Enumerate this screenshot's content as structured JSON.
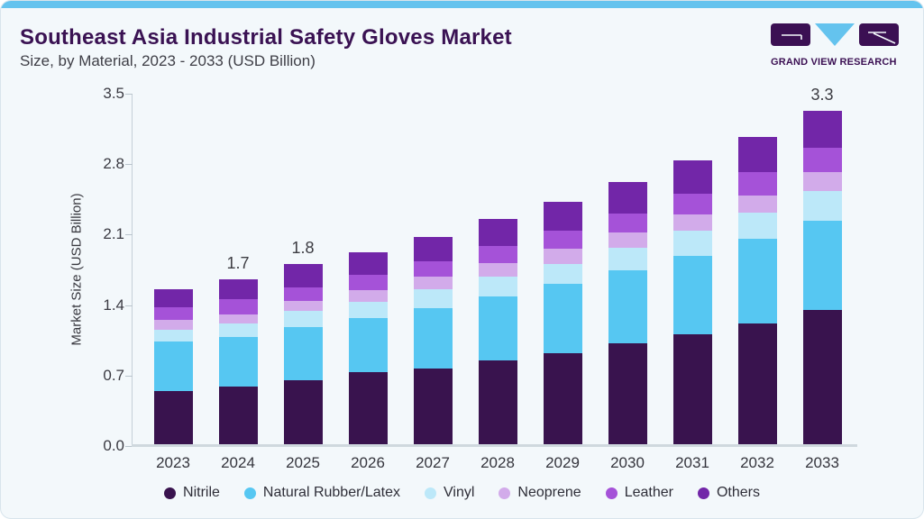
{
  "header": {
    "title": "Southeast Asia Industrial Safety Gloves Market",
    "subtitle": "Size, by Material, 2023 - 2033 (USD Billion)"
  },
  "logo": {
    "text": "GRAND VIEW RESEARCH",
    "block_color": "#3B1053",
    "triangle_color": "#64C3EE"
  },
  "colors": {
    "card_background": "#F3F8FB",
    "top_strip": "#64C3EE",
    "title_text": "#3A1253",
    "axis_line": "#C5CFD8",
    "axis_text": "#3A3A42"
  },
  "chart_data": {
    "type": "bar",
    "stacked": true,
    "title": "Southeast Asia Industrial Safety Gloves Market Size, by Material, 2023 - 2033 (USD Billion)",
    "xlabel": "",
    "ylabel": "Market Size (USD Billion)",
    "ylim": [
      0,
      3.5
    ],
    "ytick_labels": [
      "0.0",
      "0.7",
      "1.4",
      "2.1",
      "2.8",
      "3.5"
    ],
    "grid": false,
    "legend_position": "bottom",
    "categories": [
      "2023",
      "2024",
      "2025",
      "2026",
      "2027",
      "2028",
      "2029",
      "2030",
      "2031",
      "2032",
      "2033"
    ],
    "series": [
      {
        "name": "Nitrile",
        "color": "#39134E",
        "values": [
          0.55,
          0.59,
          0.65,
          0.73,
          0.77,
          0.85,
          0.92,
          1.02,
          1.11,
          1.22,
          1.35
        ]
      },
      {
        "name": "Natural Rubber/Latex",
        "color": "#56C7F2",
        "values": [
          0.49,
          0.49,
          0.53,
          0.54,
          0.6,
          0.64,
          0.69,
          0.73,
          0.78,
          0.84,
          0.89
        ]
      },
      {
        "name": "Vinyl",
        "color": "#BCE8F9",
        "values": [
          0.12,
          0.14,
          0.16,
          0.16,
          0.19,
          0.19,
          0.2,
          0.22,
          0.25,
          0.26,
          0.29
        ]
      },
      {
        "name": "Neoprene",
        "color": "#D2ABEA",
        "values": [
          0.09,
          0.09,
          0.1,
          0.12,
          0.12,
          0.14,
          0.15,
          0.15,
          0.16,
          0.17,
          0.19
        ]
      },
      {
        "name": "Leather",
        "color": "#A552D8",
        "values": [
          0.13,
          0.15,
          0.14,
          0.15,
          0.16,
          0.17,
          0.18,
          0.19,
          0.21,
          0.23,
          0.24
        ]
      },
      {
        "name": "Others",
        "color": "#7226A8",
        "values": [
          0.18,
          0.2,
          0.23,
          0.22,
          0.24,
          0.27,
          0.29,
          0.31,
          0.33,
          0.35,
          0.37
        ]
      }
    ],
    "bar_total_labels": [
      "",
      "1.7",
      "1.8",
      "",
      "",
      "",
      "",
      "",
      "",
      "",
      "3.3"
    ]
  }
}
